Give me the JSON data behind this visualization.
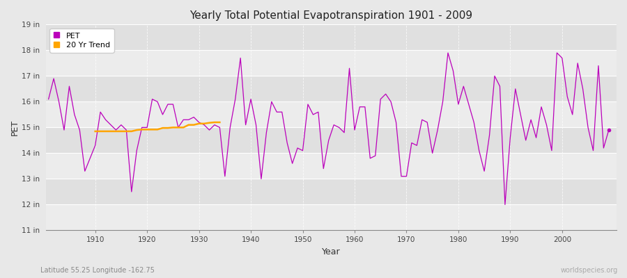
{
  "title": "Yearly Total Potential Evapotranspiration 1901 - 2009",
  "xlabel": "Year",
  "ylabel": "PET",
  "subtitle_left": "Latitude 55.25 Longitude -162.75",
  "subtitle_right": "worldspecies.org",
  "pet_color": "#bb00bb",
  "trend_color": "#ffa500",
  "bg_color": "#e8e8e8",
  "plot_bg_color": "#f0f0f0",
  "band_color_light": "#ececec",
  "band_color_dark": "#e0e0e0",
  "ylim": [
    11,
    19
  ],
  "ytick_labels": [
    "11 in",
    "12 in",
    "13 in",
    "14 in",
    "15 in",
    "16 in",
    "17 in",
    "18 in",
    "19 in"
  ],
  "ytick_values": [
    11,
    12,
    13,
    14,
    15,
    16,
    17,
    18,
    19
  ],
  "years": [
    1901,
    1902,
    1903,
    1904,
    1905,
    1906,
    1907,
    1908,
    1909,
    1910,
    1911,
    1912,
    1913,
    1914,
    1915,
    1916,
    1917,
    1918,
    1919,
    1920,
    1921,
    1922,
    1923,
    1924,
    1925,
    1926,
    1927,
    1928,
    1929,
    1930,
    1931,
    1932,
    1933,
    1934,
    1935,
    1936,
    1937,
    1938,
    1939,
    1940,
    1941,
    1942,
    1943,
    1944,
    1945,
    1946,
    1947,
    1948,
    1949,
    1950,
    1951,
    1952,
    1953,
    1954,
    1955,
    1956,
    1957,
    1958,
    1959,
    1960,
    1961,
    1962,
    1963,
    1964,
    1965,
    1966,
    1967,
    1968,
    1969,
    1970,
    1971,
    1972,
    1973,
    1974,
    1975,
    1976,
    1977,
    1978,
    1979,
    1980,
    1981,
    1982,
    1983,
    1984,
    1985,
    1986,
    1987,
    1988,
    1989,
    1990,
    1991,
    1992,
    1993,
    1994,
    1995,
    1996,
    1997,
    1998,
    1999,
    2000,
    2001,
    2002,
    2003,
    2004,
    2005,
    2006,
    2007,
    2008,
    2009
  ],
  "pet_values": [
    16.1,
    16.9,
    16.0,
    14.9,
    16.6,
    15.5,
    14.9,
    13.3,
    13.8,
    14.3,
    15.6,
    15.3,
    15.1,
    14.9,
    15.1,
    14.9,
    12.5,
    14.1,
    15.0,
    15.0,
    16.1,
    16.0,
    15.5,
    15.9,
    15.9,
    15.0,
    15.3,
    15.3,
    15.4,
    15.2,
    15.1,
    14.9,
    15.1,
    15.0,
    13.1,
    15.0,
    16.1,
    17.7,
    15.1,
    16.1,
    15.1,
    13.0,
    14.8,
    16.0,
    15.6,
    15.6,
    14.4,
    13.6,
    14.2,
    14.1,
    15.9,
    15.5,
    15.6,
    13.4,
    14.5,
    15.1,
    15.0,
    14.8,
    17.3,
    14.9,
    15.8,
    15.8,
    13.8,
    13.9,
    16.1,
    16.3,
    16.0,
    15.2,
    13.1,
    13.1,
    14.4,
    14.3,
    15.3,
    15.2,
    14.0,
    14.9,
    16.0,
    17.9,
    17.2,
    15.9,
    16.6,
    15.9,
    15.2,
    14.1,
    13.3,
    14.7,
    17.0,
    16.6,
    12.0,
    14.6,
    16.5,
    15.5,
    14.5,
    15.3,
    14.6,
    15.8,
    15.1,
    14.1,
    17.9,
    17.7,
    16.2,
    15.5,
    17.5,
    16.5,
    15.0,
    14.1,
    17.4,
    14.2,
    14.9
  ],
  "trend_years": [
    1910,
    1911,
    1912,
    1913,
    1914,
    1915,
    1916,
    1917,
    1918,
    1919,
    1920,
    1921,
    1922,
    1923,
    1924,
    1925,
    1926,
    1927,
    1928,
    1929,
    1930,
    1931,
    1932,
    1933,
    1934
  ],
  "trend_values": [
    14.85,
    14.85,
    14.85,
    14.85,
    14.85,
    14.85,
    14.85,
    14.85,
    14.9,
    14.92,
    14.92,
    14.92,
    14.92,
    14.98,
    14.98,
    15.0,
    15.0,
    15.0,
    15.1,
    15.1,
    15.15,
    15.15,
    15.18,
    15.2,
    15.2
  ],
  "dot_year": 2009,
  "dot_value": 14.9,
  "legend_pet_label": "PET",
  "legend_trend_label": "20 Yr Trend",
  "xlim": [
    1900.5,
    2010.5
  ],
  "xticks": [
    1910,
    1920,
    1930,
    1940,
    1950,
    1960,
    1970,
    1980,
    1990,
    2000
  ]
}
